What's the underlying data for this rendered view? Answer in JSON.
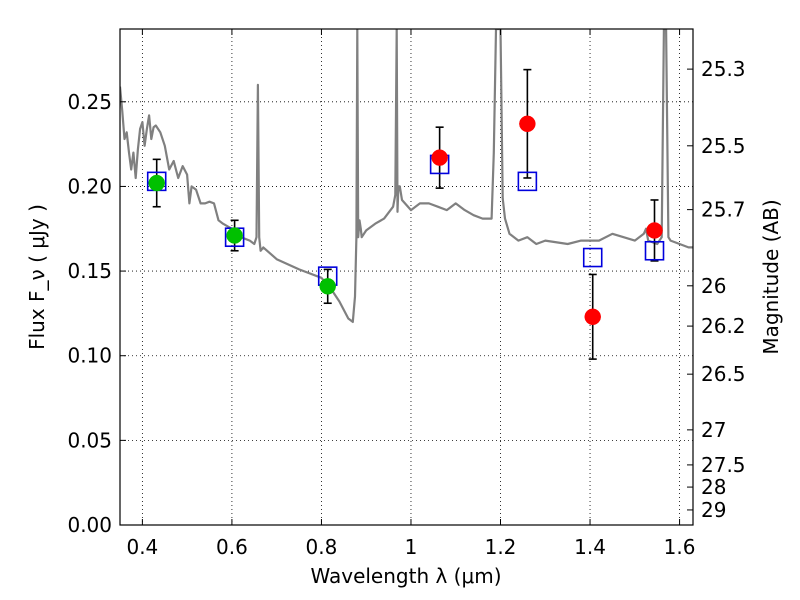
{
  "chart_data": {
    "type": "scatter",
    "xlabel": "Wavelength  λ (μm)",
    "ylabel": "Flux  F_ν  ( μJy )",
    "ylabel_right": "Magnitude (AB)",
    "xlim": [
      0.35,
      1.63
    ],
    "ylim": [
      0.0,
      0.293
    ],
    "grid": true,
    "x_ticks": [
      0.4,
      0.6,
      0.8,
      1.0,
      1.2,
      1.4,
      1.6
    ],
    "x_tick_labels": [
      "0.4",
      "0.6",
      "0.8",
      "1",
      "1.2",
      "1.4",
      "1.6"
    ],
    "y_ticks": [
      0.0,
      0.05,
      0.1,
      0.15,
      0.2,
      0.25
    ],
    "y_tick_labels": [
      "0.00",
      "0.05",
      "0.10",
      "0.15",
      "0.20",
      "0.25"
    ],
    "right_ticks": [
      {
        "label": "25.3",
        "flux": 0.2693
      },
      {
        "label": "25.5",
        "flux": 0.224
      },
      {
        "label": "25.7",
        "flux": 0.1863
      },
      {
        "label": "26",
        "flux": 0.1413
      },
      {
        "label": "26.2",
        "flux": 0.1175
      },
      {
        "label": "26.5",
        "flux": 0.0891
      },
      {
        "label": "27",
        "flux": 0.0562
      },
      {
        "label": "27.5",
        "flux": 0.0355
      },
      {
        "label": "28",
        "flux": 0.0224
      },
      {
        "label": "29",
        "flux": 0.0089
      }
    ],
    "series": [
      {
        "kind": "green_points",
        "color": "#00c000",
        "points": [
          {
            "x": 0.432,
            "y": 0.202,
            "err": 0.014
          },
          {
            "x": 0.606,
            "y": 0.171,
            "err": 0.009
          },
          {
            "x": 0.814,
            "y": 0.141,
            "err": 0.01
          }
        ]
      },
      {
        "kind": "red_points",
        "color": "#ff0000",
        "points": [
          {
            "x": 1.064,
            "y": 0.217,
            "err": 0.018
          },
          {
            "x": 1.26,
            "y": 0.237,
            "err": 0.032
          },
          {
            "x": 1.406,
            "y": 0.123,
            "err": 0.025
          },
          {
            "x": 1.544,
            "y": 0.174,
            "err": 0.018
          }
        ]
      },
      {
        "kind": "blue_squares",
        "color": "#0000dd",
        "points": [
          {
            "x": 0.432,
            "y": 0.203
          },
          {
            "x": 0.606,
            "y": 0.17
          },
          {
            "x": 0.814,
            "y": 0.147
          },
          {
            "x": 1.064,
            "y": 0.213
          },
          {
            "x": 1.26,
            "y": 0.203
          },
          {
            "x": 1.406,
            "y": 0.158
          },
          {
            "x": 1.544,
            "y": 0.162
          }
        ]
      }
    ],
    "model_spectrum": {
      "color": "#808080",
      "x": [
        0.35,
        0.355,
        0.36,
        0.365,
        0.37,
        0.375,
        0.38,
        0.385,
        0.39,
        0.395,
        0.4,
        0.405,
        0.41,
        0.415,
        0.42,
        0.425,
        0.43,
        0.44,
        0.45,
        0.46,
        0.47,
        0.48,
        0.49,
        0.5,
        0.505,
        0.51,
        0.52,
        0.53,
        0.54,
        0.55,
        0.56,
        0.57,
        0.58,
        0.6,
        0.62,
        0.64,
        0.65,
        0.655,
        0.658,
        0.661,
        0.664,
        0.67,
        0.7,
        0.75,
        0.8,
        0.82,
        0.84,
        0.86,
        0.87,
        0.875,
        0.878,
        0.88,
        0.882,
        0.885,
        0.888,
        0.89,
        0.9,
        0.92,
        0.94,
        0.96,
        0.965,
        0.968,
        0.97,
        0.972,
        0.975,
        0.98,
        1.0,
        1.02,
        1.04,
        1.06,
        1.08,
        1.1,
        1.12,
        1.14,
        1.16,
        1.18,
        1.185,
        1.19,
        1.195,
        1.2,
        1.205,
        1.21,
        1.22,
        1.24,
        1.26,
        1.28,
        1.3,
        1.35,
        1.38,
        1.4,
        1.42,
        1.45,
        1.5,
        1.52,
        1.525,
        1.53,
        1.55,
        1.56,
        1.565,
        1.57,
        1.575,
        1.58,
        1.6,
        1.62,
        1.63
      ],
      "y": [
        0.259,
        0.245,
        0.228,
        0.232,
        0.22,
        0.21,
        0.22,
        0.205,
        0.222,
        0.234,
        0.238,
        0.224,
        0.234,
        0.242,
        0.228,
        0.235,
        0.236,
        0.232,
        0.224,
        0.21,
        0.215,
        0.205,
        0.212,
        0.207,
        0.19,
        0.2,
        0.198,
        0.19,
        0.19,
        0.191,
        0.19,
        0.18,
        0.178,
        0.175,
        0.17,
        0.168,
        0.166,
        0.17,
        0.26,
        0.17,
        0.162,
        0.164,
        0.157,
        0.151,
        0.146,
        0.14,
        0.132,
        0.122,
        0.12,
        0.135,
        0.17,
        0.293,
        0.17,
        0.18,
        0.175,
        0.17,
        0.174,
        0.178,
        0.181,
        0.188,
        0.195,
        0.293,
        0.185,
        0.2,
        0.2,
        0.192,
        0.186,
        0.19,
        0.19,
        0.188,
        0.186,
        0.19,
        0.186,
        0.183,
        0.181,
        0.181,
        0.22,
        0.293,
        0.293,
        0.293,
        0.193,
        0.181,
        0.172,
        0.168,
        0.17,
        0.166,
        0.168,
        0.166,
        0.168,
        0.168,
        0.168,
        0.172,
        0.168,
        0.172,
        0.175,
        0.168,
        0.166,
        0.17,
        0.293,
        0.293,
        0.17,
        0.168,
        0.166,
        0.164,
        0.164
      ]
    }
  }
}
